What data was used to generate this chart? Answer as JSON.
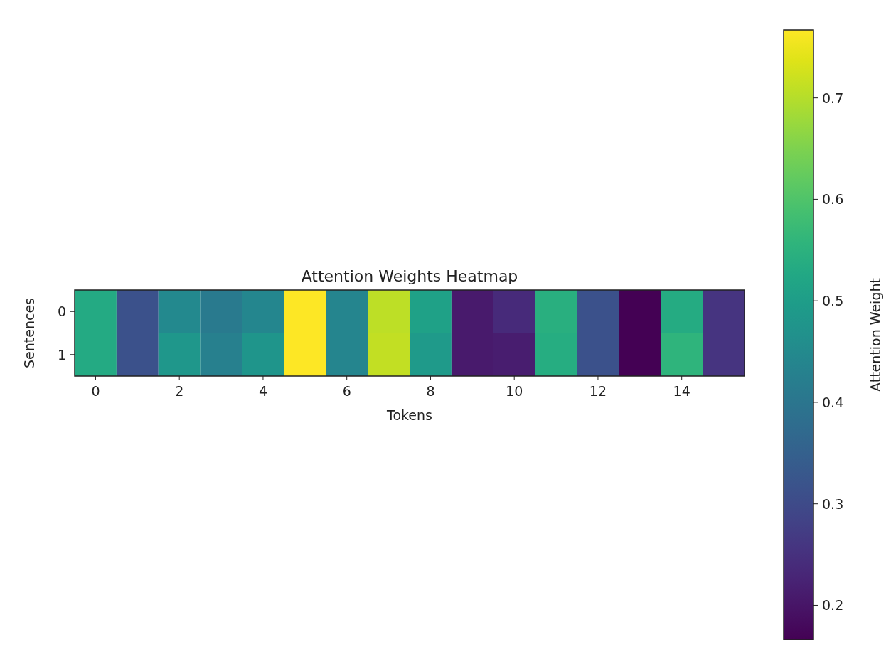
{
  "chart_data": {
    "type": "heatmap",
    "title": "Attention Weights Heatmap",
    "xlabel": "Tokens",
    "ylabel": "Sentences",
    "clabel": "Attention Weight",
    "categories": [
      "0",
      null,
      "2",
      null,
      "4",
      null,
      "6",
      null,
      "8",
      null,
      "10",
      null,
      "12",
      null,
      "14",
      null
    ],
    "y_categories": [
      "0",
      "1"
    ],
    "cells": [
      [
        0.53,
        0.316,
        0.448,
        0.412,
        0.443,
        0.767,
        0.44,
        0.707,
        0.509,
        0.208,
        0.238,
        0.545,
        0.316,
        0.166,
        0.533,
        0.256
      ],
      [
        0.53,
        0.316,
        0.485,
        0.425,
        0.479,
        0.765,
        0.44,
        0.713,
        0.49,
        0.208,
        0.214,
        0.539,
        0.316,
        0.166,
        0.557,
        0.256
      ]
    ],
    "clim": [
      0.166,
      0.767
    ],
    "cticks": [
      0.2,
      0.3,
      0.4,
      0.5,
      0.6,
      0.7
    ]
  }
}
